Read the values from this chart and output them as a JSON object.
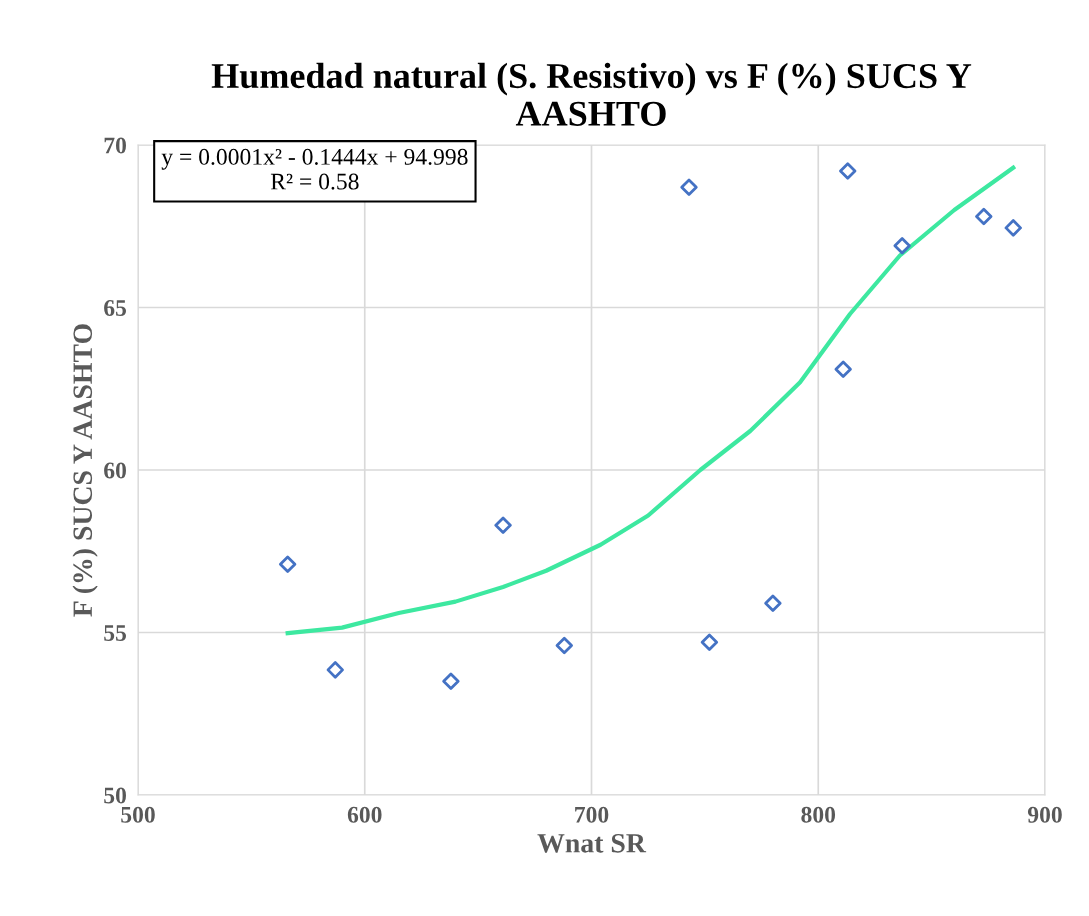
{
  "chart_data": {
    "type": "scatter",
    "title": "Humedad natural (S. Resistivo) vs F (%) SUCS Y AASHTO",
    "xlabel": "Wnat SR",
    "ylabel": "F (%) SUCS Y AASHTO",
    "xlim": [
      500,
      900
    ],
    "xticks": [
      500,
      600,
      700,
      800,
      900
    ],
    "ylim": [
      50,
      70
    ],
    "yticks": [
      50,
      55,
      60,
      65,
      70
    ],
    "grid": true,
    "marker": "diamond",
    "series": [
      {
        "color": "#4472c4",
        "x": [
          566,
          587,
          638,
          661,
          688,
          743,
          752,
          780,
          811,
          813,
          837,
          873,
          886
        ],
        "values": [
          57.1,
          53.85,
          53.5,
          58.3,
          54.6,
          68.7,
          54.7,
          55.9,
          63.1,
          69.2,
          66.9,
          67.8,
          67.45
        ]
      },
      {
        "type": "line",
        "color": "#3de8a0",
        "marker": "none",
        "x": [
          566,
          590,
          615,
          640,
          661,
          680,
          704,
          725,
          748,
          770,
          792,
          814,
          836,
          860,
          886
        ],
        "values": [
          54.98,
          55.15,
          55.6,
          55.95,
          56.4,
          56.9,
          57.7,
          58.6,
          60.0,
          61.2,
          62.7,
          64.8,
          66.6,
          68.0,
          69.3
        ]
      }
    ],
    "annotations": [
      "y = 0.0001x² - 0.1444x + 94.998",
      "R² = 0.58"
    ]
  }
}
